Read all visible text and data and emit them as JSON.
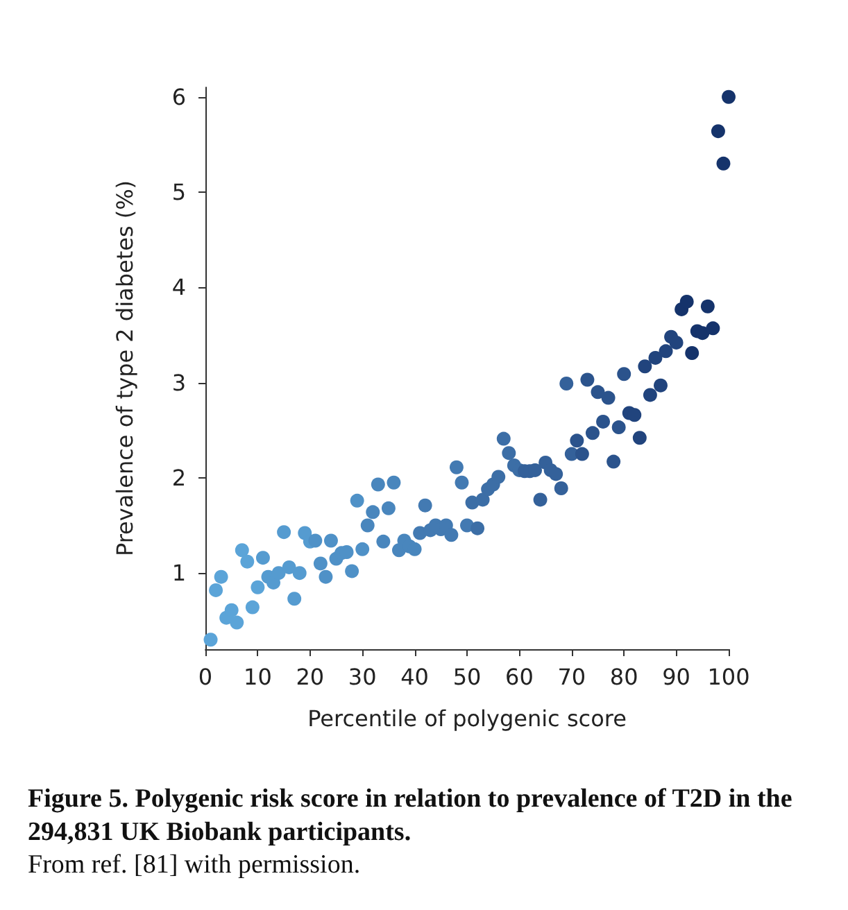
{
  "chart_data": {
    "type": "scatter",
    "title": "Figure 5. Polygenic risk score in relation to prevalence of T2D in the 294,831 UK Biobank participants.",
    "annotations": [
      "From ref. [81] with permission."
    ],
    "xlabel": "Percentile of polygenic score",
    "ylabel": "Prevalence of type 2 diabetes (%)",
    "x": [
      1,
      2,
      3,
      4,
      5,
      6,
      7,
      8,
      9,
      10,
      11,
      12,
      13,
      14,
      15,
      16,
      17,
      18,
      19,
      20,
      21,
      22,
      23,
      24,
      25,
      26,
      27,
      28,
      29,
      30,
      31,
      32,
      33,
      34,
      35,
      36,
      37,
      38,
      39,
      40,
      41,
      42,
      43,
      44,
      45,
      46,
      47,
      48,
      49,
      50,
      51,
      52,
      53,
      54,
      55,
      56,
      57,
      58,
      59,
      60,
      61,
      62,
      63,
      64,
      65,
      66,
      67,
      68,
      69,
      70,
      71,
      72,
      73,
      74,
      75,
      76,
      77,
      78,
      79,
      80,
      81,
      82,
      83,
      84,
      85,
      86,
      87,
      88,
      89,
      90,
      91,
      92,
      93,
      94,
      95,
      96,
      97,
      98,
      99,
      100
    ],
    "values": [
      0.3,
      0.82,
      0.96,
      0.53,
      0.61,
      0.48,
      1.24,
      1.12,
      0.64,
      0.85,
      1.16,
      0.96,
      0.9,
      1.0,
      1.43,
      1.06,
      0.73,
      1.0,
      1.42,
      1.33,
      1.34,
      1.1,
      0.96,
      1.34,
      1.15,
      1.21,
      1.22,
      1.02,
      1.76,
      1.25,
      1.5,
      1.64,
      1.93,
      1.33,
      1.68,
      1.95,
      1.24,
      1.34,
      1.28,
      1.25,
      1.42,
      1.71,
      1.45,
      1.5,
      1.46,
      1.5,
      1.4,
      2.11,
      1.95,
      1.5,
      1.74,
      1.47,
      1.77,
      1.88,
      1.93,
      2.01,
      2.41,
      2.26,
      2.13,
      2.08,
      2.07,
      2.07,
      2.08,
      1.77,
      2.16,
      2.08,
      2.04,
      1.89,
      2.99,
      2.25,
      2.39,
      2.25,
      3.03,
      2.47,
      2.9,
      2.59,
      2.84,
      2.17,
      2.53,
      3.09,
      2.68,
      2.66,
      2.42,
      3.17,
      2.87,
      3.26,
      2.97,
      3.33,
      3.48,
      3.42,
      3.77,
      3.85,
      3.31,
      3.54,
      3.52,
      3.8,
      3.57,
      5.64,
      5.3,
      6.0
    ],
    "colors": [
      "#5ba4d8",
      "#5ba4d8",
      "#5ba4d8",
      "#5ba4d8",
      "#5ba4d8",
      "#5ba4d8",
      "#5ba4d8",
      "#5ba4d8",
      "#5ba4d8",
      "#5ba4d8",
      "#559bd0",
      "#559bd0",
      "#559bd0",
      "#559bd0",
      "#559bd0",
      "#559bd0",
      "#559bd0",
      "#559bd0",
      "#559bd0",
      "#559bd0",
      "#4f91c7",
      "#4f91c7",
      "#4f91c7",
      "#4f91c7",
      "#4f91c7",
      "#4f91c7",
      "#4f91c7",
      "#4f91c7",
      "#4f91c7",
      "#4f91c7",
      "#4986bd",
      "#4986bd",
      "#4986bd",
      "#4986bd",
      "#4986bd",
      "#4986bd",
      "#4986bd",
      "#4986bd",
      "#4986bd",
      "#4986bd",
      "#437ab2",
      "#437ab2",
      "#437ab2",
      "#437ab2",
      "#437ab2",
      "#437ab2",
      "#437ab2",
      "#437ab2",
      "#437ab2",
      "#437ab2",
      "#3c6ea6",
      "#3c6ea6",
      "#3c6ea6",
      "#3c6ea6",
      "#3c6ea6",
      "#3c6ea6",
      "#3c6ea6",
      "#3c6ea6",
      "#3c6ea6",
      "#3c6ea6",
      "#34619a",
      "#34619a",
      "#34619a",
      "#34619a",
      "#34619a",
      "#34619a",
      "#34619a",
      "#34619a",
      "#34619a",
      "#34619a",
      "#2b538c",
      "#2b538c",
      "#2b538c",
      "#2b538c",
      "#2b538c",
      "#2b538c",
      "#2b538c",
      "#2b538c",
      "#2b538c",
      "#2b538c",
      "#21447d",
      "#21447d",
      "#21447d",
      "#21447d",
      "#21447d",
      "#21447d",
      "#21447d",
      "#21447d",
      "#21447d",
      "#21447d",
      "#15336b",
      "#15336b",
      "#15336b",
      "#15336b",
      "#15336b",
      "#15336b",
      "#15336b",
      "#15336b",
      "#15336b",
      "#15336b"
    ],
    "xlim": [
      0,
      100
    ],
    "xticks": [
      0,
      10,
      20,
      30,
      40,
      50,
      60,
      70,
      80,
      90,
      100
    ],
    "ylim": [
      0.2,
      6.1
    ],
    "yticks": [
      1,
      2,
      3,
      4,
      5,
      6
    ],
    "grid": false,
    "marker": "circle"
  }
}
